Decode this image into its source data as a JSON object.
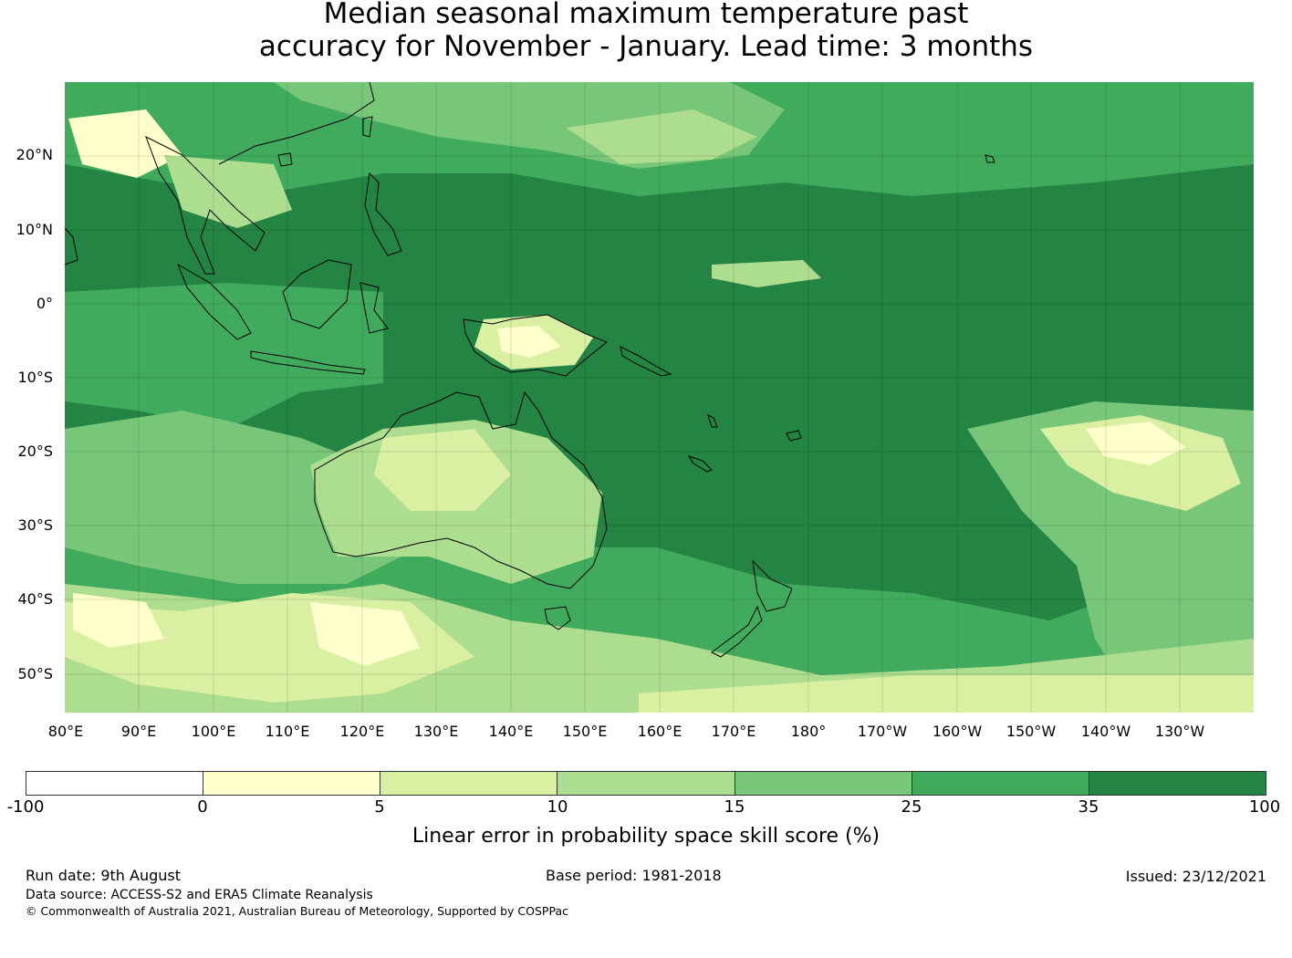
{
  "title": {
    "line1": "Median seasonal maximum temperature past",
    "line2": "accuracy for November - January. Lead time: 3 months"
  },
  "map": {
    "region": "Pacific / Australia",
    "lat_labels": [
      "20°N",
      "10°N",
      "0°",
      "10°S",
      "20°S",
      "30°S",
      "40°S",
      "50°S"
    ],
    "lon_labels": [
      "80°E",
      "90°E",
      "100°E",
      "110°E",
      "120°E",
      "130°E",
      "140°E",
      "150°E",
      "160°E",
      "170°E",
      "180°",
      "170°W",
      "160°W",
      "150°W",
      "140°W",
      "130°W"
    ],
    "colors": {
      "lt_m100": "#ffffff",
      "b0_5": "#ffffcc",
      "b5_10": "#d9f0a3",
      "b10_15": "#addd8e",
      "b15_25": "#78c679",
      "b25_35": "#41ab5d",
      "b35_100": "#238443"
    }
  },
  "colorbar": {
    "ticks": [
      "-100",
      "0",
      "5",
      "10",
      "15",
      "25",
      "35",
      "100"
    ],
    "segment_colors": [
      "#ffffff",
      "#ffffcc",
      "#d9f0a3",
      "#addd8e",
      "#78c679",
      "#41ab5d",
      "#238443"
    ],
    "label": "Linear error in probability space skill score (%)"
  },
  "footer": {
    "run_date": "Run date: 9th August",
    "base_period": "Base period: 1981-2018",
    "issued": "Issued: 23/12/2021",
    "data_source": "Data source: ACCESS-S2 and ERA5 Climate Reanalysis",
    "copyright": "© Commonwealth of Australia 2021, Australian Bureau of Meteorology, Supported by COSPPac"
  }
}
